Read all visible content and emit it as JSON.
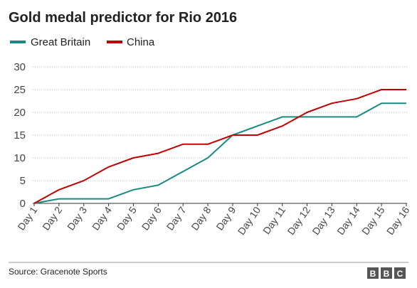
{
  "chart_data": {
    "type": "line",
    "title": "Gold medal predictor for Rio 2016",
    "categories": [
      "Day 1",
      "Day 2",
      "Day 3",
      "Day 4",
      "Day 5",
      "Day 6",
      "Day 7",
      "Day 8",
      "Day 9",
      "Day 10",
      "Day 11",
      "Day 12",
      "Day 13",
      "Day 14",
      "Day 15",
      "Day 16"
    ],
    "series": [
      {
        "name": "Great Britain",
        "color": "#1a8a80",
        "values": [
          0,
          1,
          1,
          1,
          3,
          4,
          7,
          10,
          15,
          17,
          19,
          19,
          19,
          19,
          22,
          22
        ]
      },
      {
        "name": "China",
        "color": "#c00000",
        "values": [
          0,
          3,
          5,
          8,
          10,
          11,
          13,
          13,
          15,
          15,
          17,
          20,
          22,
          23,
          25,
          25
        ]
      }
    ],
    "yticks": [
      0,
      5,
      10,
      15,
      20,
      25,
      30
    ],
    "ylim": [
      0,
      30
    ],
    "grid": "horizontal dotted",
    "legend": "top-left"
  },
  "footer": {
    "source": "Source: Gracenote Sports",
    "logo_letters": [
      "B",
      "B",
      "C"
    ]
  }
}
